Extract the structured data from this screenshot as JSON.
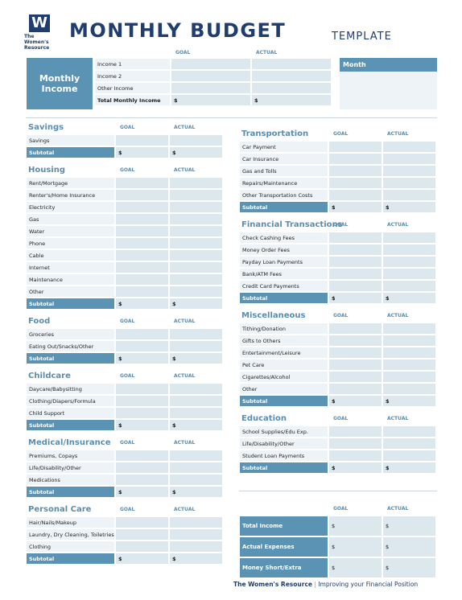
{
  "header": {
    "logo": [
      "The",
      "Women's",
      "Resource"
    ],
    "title": "MONTHLY BUDGET",
    "subtitle": "TEMPLATE"
  },
  "income": {
    "label": "Monthly Income",
    "goal_label": "GOAL",
    "actual_label": "ACTUAL",
    "items": [
      "Income 1",
      "Income 2",
      "Other Income"
    ],
    "total": {
      "label": "Total Monthly Income",
      "goal": "$",
      "actual": "$"
    },
    "month_label": "Month"
  },
  "left_sections": [
    {
      "title": "Savings",
      "goal_label": "GOAL",
      "actual_label": "ACTUAL",
      "items": [
        "Savings"
      ],
      "subtotal": {
        "label": "Subtotal",
        "goal": "$",
        "actual": "$"
      }
    },
    {
      "title": "Housing",
      "goal_label": "GOAL",
      "actual_label": "ACTUAL",
      "items": [
        "Rent/Mortgage",
        "Renter's/Home Insurance",
        "Electricity",
        "Gas",
        "Water",
        "Phone",
        "Cable",
        "Internet",
        "Maintenance",
        "Other"
      ],
      "subtotal": {
        "label": "Subtotal",
        "goal": "$",
        "actual": "$"
      }
    },
    {
      "title": "Food",
      "goal_label": "GOAL",
      "actual_label": "ACTUAL",
      "items": [
        "Groceries",
        "Eating Out/Snacks/Other"
      ],
      "subtotal": {
        "label": "Subtotal",
        "goal": "$",
        "actual": "$"
      }
    },
    {
      "title": "Childcare",
      "goal_label": "GOAL",
      "actual_label": "ACTUAL",
      "items": [
        "Daycare/Babysitting",
        "Clothing/Diapers/Formula",
        "Child Support"
      ],
      "subtotal": {
        "label": "Subtotal",
        "goal": "$",
        "actual": "$"
      }
    },
    {
      "title": "Medical/Insurance",
      "goal_label": "GOAL",
      "actual_label": "ACTUAL",
      "items": [
        "Premiums, Copays",
        "Life/Disability/Other",
        "Medications"
      ],
      "subtotal": {
        "label": "Subtotal",
        "goal": "$",
        "actual": "$"
      }
    },
    {
      "title": "Personal Care",
      "goal_label": "GOAL",
      "actual_label": "ACTUAL",
      "items": [
        "Hair/Nails/Makeup",
        "Laundry, Dry Cleaning, Toiletries",
        "Clothing"
      ],
      "subtotal": {
        "label": "Subtotal",
        "goal": "$",
        "actual": "$"
      }
    }
  ],
  "right_sections": [
    {
      "title": "Transportation",
      "goal_label": "GOAL",
      "actual_label": "ACTUAL",
      "items": [
        "Car Payment",
        "Car Insurance",
        "Gas and Tolls",
        "Repairs/Maintenance",
        "Other Transportation Costs"
      ],
      "subtotal": {
        "label": "Subtotal",
        "goal": "$",
        "actual": "$"
      }
    },
    {
      "title": "Financial Transactions",
      "goal_label": "GOAL",
      "actual_label": "ACTUAL",
      "items": [
        "Check Cashing Fees",
        "Money Order Fees",
        "Payday Loan Payments",
        "Bank/ATM Fees",
        "Credit Card Payments"
      ],
      "subtotal": {
        "label": "Subtotal",
        "goal": "$",
        "actual": "$"
      }
    },
    {
      "title": "Miscellaneous",
      "goal_label": "GOAL",
      "actual_label": "ACTUAL",
      "items": [
        "Tithing/Donation",
        "Gifts to Others",
        "Entertainment/Leisure",
        "Pet Care",
        "Cigarettes/Alcohol",
        "Other"
      ],
      "subtotal": {
        "label": "Subtotal",
        "goal": "$",
        "actual": "$"
      }
    },
    {
      "title": "Education",
      "goal_label": "GOAL",
      "actual_label": "ACTUAL",
      "items": [
        "School Supplies/Edu Exp.",
        "Life/Disability/Other",
        "Student Loan Payments"
      ],
      "subtotal": {
        "label": "Subtotal",
        "goal": "$",
        "actual": "$"
      }
    }
  ],
  "summary": {
    "goal_label": "GOAL",
    "actual_label": "ACTUAL",
    "rows": [
      {
        "label": "Total Income",
        "goal": "$",
        "actual": "$"
      },
      {
        "label": "Actual Expenses",
        "goal": "$",
        "actual": "$"
      },
      {
        "label": "Money Short/Extra",
        "goal": "$",
        "actual": "$"
      }
    ]
  },
  "footer": {
    "organization": "The Women's Resource",
    "separator": "|",
    "tagline": "Improving your Financial Position"
  }
}
